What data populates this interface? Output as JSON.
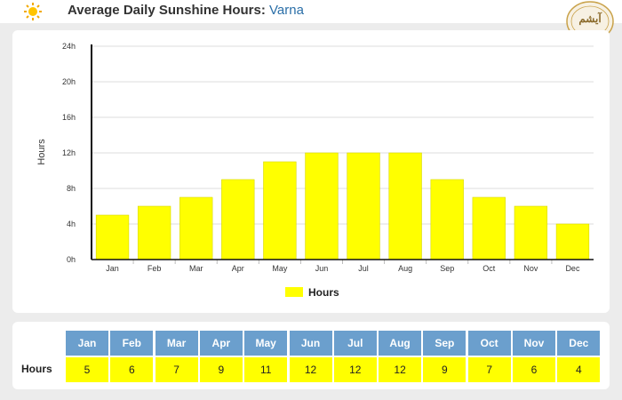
{
  "header": {
    "title_prefix": "Average Daily Sunshine Hours:",
    "city": "Varna",
    "logo_text": "آیشم"
  },
  "colors": {
    "bar": "#ffff00",
    "bar_stroke": "#d8d800",
    "table_header": "#6b9fcd",
    "city": "#2b6fa8"
  },
  "chart_data": {
    "type": "bar",
    "categories": [
      "Jan",
      "Feb",
      "Mar",
      "Apr",
      "May",
      "Jun",
      "Jul",
      "Aug",
      "Sep",
      "Oct",
      "Nov",
      "Dec"
    ],
    "series": [
      {
        "name": "Hours",
        "values": [
          5,
          6,
          7,
          9,
          11,
          12,
          12,
          12,
          9,
          7,
          6,
          4
        ]
      }
    ],
    "ylabel": "Hours",
    "ylim": [
      0,
      24
    ],
    "yticks": [
      "0h",
      "4h",
      "8h",
      "12h",
      "16h",
      "20h",
      "24h"
    ],
    "ytick_values": [
      0,
      4,
      8,
      12,
      16,
      20,
      24
    ],
    "grid": true,
    "legend": "bottom-center"
  },
  "table": {
    "row_label": "Hours",
    "months": [
      "Jan",
      "Feb",
      "Mar",
      "Apr",
      "May",
      "Jun",
      "Jul",
      "Aug",
      "Sep",
      "Oct",
      "Nov",
      "Dec"
    ],
    "values": [
      "5",
      "6",
      "7",
      "9",
      "11",
      "12",
      "12",
      "12",
      "9",
      "7",
      "6",
      "4"
    ]
  }
}
